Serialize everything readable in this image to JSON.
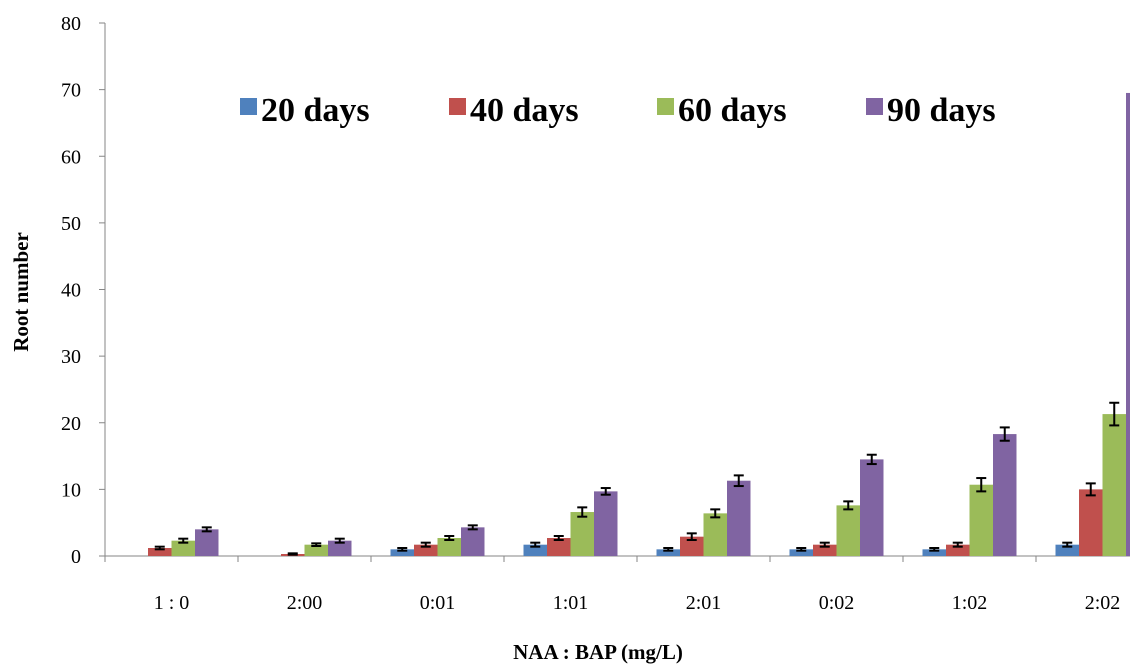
{
  "chart_data": {
    "type": "bar",
    "title": "",
    "xlabel": "NAA : BAP (mg/L)",
    "ylabel": "Root number",
    "ylim": [
      0,
      80
    ],
    "yticks": [
      "0",
      "10",
      "20",
      "30",
      "40",
      "50",
      "60",
      "70",
      "80"
    ],
    "categories": [
      "1 : 0",
      "2:00",
      "0:01",
      "1:01",
      "2:01",
      "0:02",
      "1:02",
      "2:02"
    ],
    "legend_position": "top",
    "grid": false,
    "series": [
      {
        "name": "20 days",
        "color": "#4f81bd",
        "values": [
          0,
          0,
          1.0,
          1.7,
          1.0,
          1.0,
          1.0,
          1.7
        ],
        "errors": [
          0,
          0,
          0.2,
          0.3,
          0.2,
          0.2,
          0.2,
          0.3
        ]
      },
      {
        "name": "40 days",
        "color": "#c0504d",
        "values": [
          1.2,
          0.3,
          1.7,
          2.7,
          2.9,
          1.7,
          1.7,
          10.0
        ],
        "errors": [
          0.2,
          0.1,
          0.3,
          0.3,
          0.5,
          0.3,
          0.3,
          0.9
        ]
      },
      {
        "name": "60 days",
        "color": "#9bbb59",
        "values": [
          2.3,
          1.7,
          2.7,
          6.6,
          6.4,
          7.6,
          10.7,
          21.3
        ],
        "errors": [
          0.3,
          0.2,
          0.3,
          0.7,
          0.6,
          0.6,
          1.0,
          1.7
        ]
      },
      {
        "name": "90 days",
        "color": "#8064a2",
        "values": [
          4.0,
          2.3,
          4.3,
          9.7,
          11.3,
          14.5,
          18.3,
          69.5
        ],
        "errors": [
          0.3,
          0.3,
          0.3,
          0.5,
          0.8,
          0.7,
          1.0,
          3.5
        ]
      }
    ]
  }
}
